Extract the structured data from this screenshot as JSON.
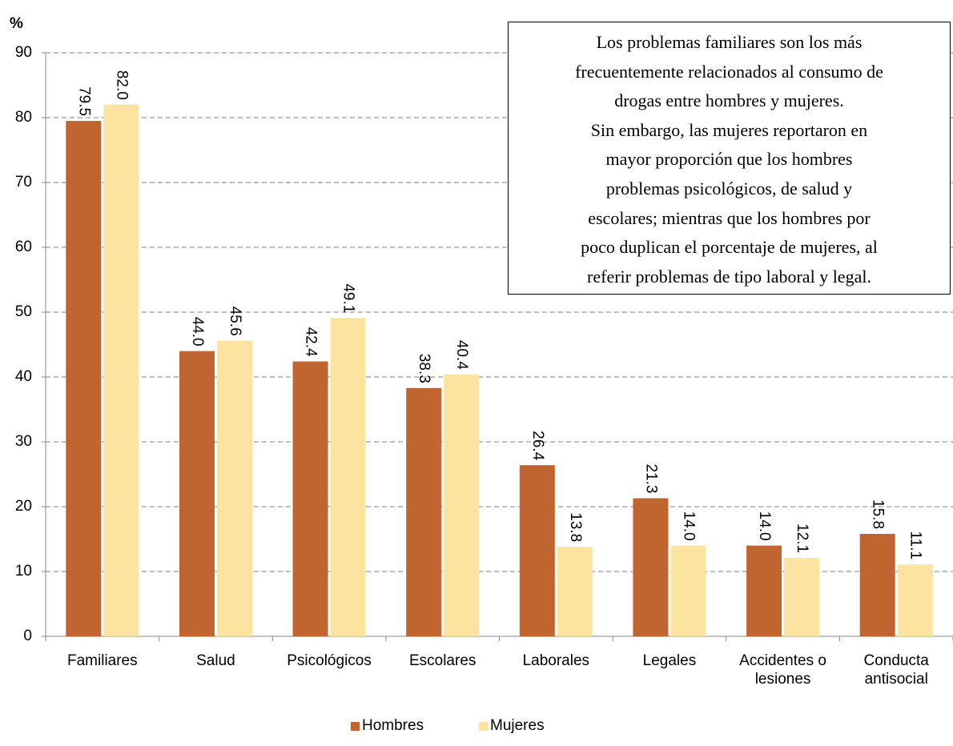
{
  "chart_data": {
    "type": "bar",
    "ylabel": "%",
    "categories": [
      "Familiares",
      "Salud",
      "Psicológicos",
      "Escolares",
      "Laborales",
      "Legales",
      "Accidentes o lesiones",
      "Conducta antisocial"
    ],
    "series": [
      {
        "name": "Hombres",
        "color": "#c0652f",
        "values": [
          79.5,
          44.0,
          42.4,
          38.3,
          26.4,
          21.3,
          14.0,
          15.8
        ],
        "value_labels": [
          "79.5",
          "44.0",
          "42.4",
          "38.3",
          "26.4",
          "21.3",
          "14.0",
          "15.8"
        ]
      },
      {
        "name": "Mujeres",
        "color": "#fde3a0",
        "values": [
          82.0,
          45.6,
          49.1,
          40.4,
          13.8,
          14.0,
          12.1,
          11.1
        ],
        "value_labels": [
          "82.0",
          "45.6",
          "49.1",
          "40.4",
          "13.8",
          "14.0",
          "12.1",
          "11.1"
        ]
      }
    ],
    "ylim": [
      0,
      90
    ],
    "yticks": [
      0,
      10,
      20,
      30,
      40,
      50,
      60,
      70,
      80,
      90
    ],
    "grid": true,
    "legend": "bottom",
    "annotation": [
      "Los problemas familiares son los más",
      "frecuentemente relacionados al consumo de",
      "drogas  entre hombres y mujeres.",
      "Sin embargo, las mujeres reportaron en",
      "mayor proporción que los hombres",
      "problemas psicológicos,  de salud y",
      "escolares; mientras que  los hombres por",
      "poco duplican el porcentaje de mujeres, al",
      "referir problemas de tipo  laboral y legal."
    ]
  }
}
